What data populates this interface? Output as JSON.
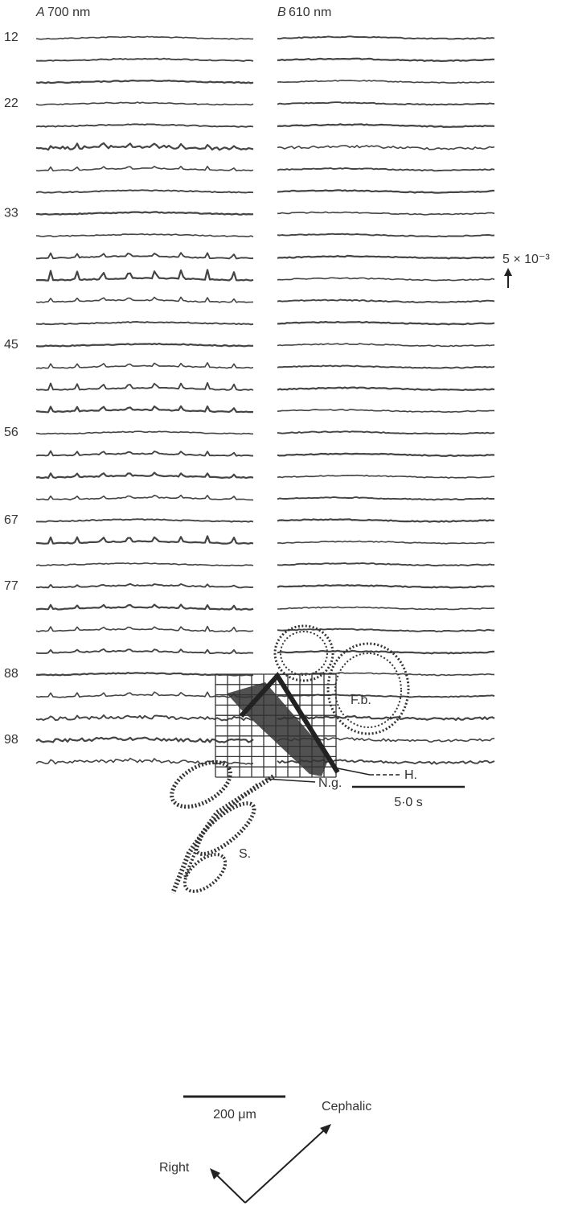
{
  "panels": [
    {
      "label": "A",
      "wavelength": "700 nm"
    },
    {
      "label": "B",
      "wavelength": "610 nm"
    }
  ],
  "row_labels": [
    "12",
    "22",
    "33",
    "45",
    "56",
    "67",
    "77",
    "88",
    "98"
  ],
  "scale_bars": {
    "amplitude": "5 × 10⁻³",
    "time": "5·0 s",
    "length": "200 μm"
  },
  "map_labels": {
    "fb": "F.b.",
    "h": "H.",
    "ng": "N.g.",
    "s": "S."
  },
  "orientation": {
    "cephalic": "Cephalic",
    "right": "Right"
  }
}
